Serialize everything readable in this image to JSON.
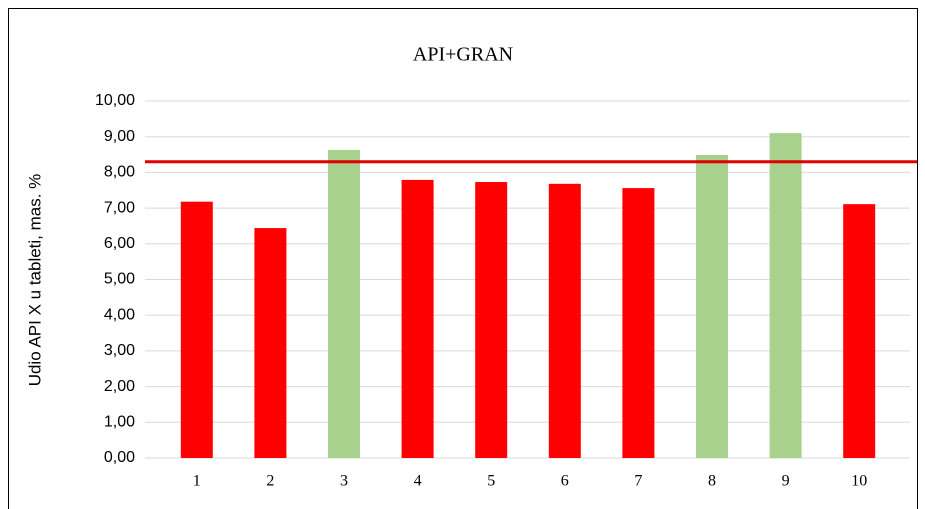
{
  "chart_data": {
    "type": "bar",
    "title": "API+GRAN",
    "y_label": "Udio API X u tableti, mas. %",
    "categories": [
      "1",
      "2",
      "3",
      "4",
      "5",
      "6",
      "7",
      "8",
      "9",
      "10"
    ],
    "values": [
      7.18,
      6.44,
      8.63,
      7.79,
      7.73,
      7.68,
      7.56,
      8.49,
      9.1,
      7.11
    ],
    "colors": [
      "#ff0000",
      "#ff0000",
      "#a9d18e",
      "#ff0000",
      "#ff0000",
      "#ff0000",
      "#ff0000",
      "#a9d18e",
      "#a9d18e",
      "#ff0000"
    ],
    "ylim": [
      0,
      10
    ],
    "yticks": [
      {
        "value": 0,
        "label": "0,00"
      },
      {
        "value": 1,
        "label": "1,00"
      },
      {
        "value": 2,
        "label": "2,00"
      },
      {
        "value": 3,
        "label": "3,00"
      },
      {
        "value": 4,
        "label": "4,00"
      },
      {
        "value": 5,
        "label": "5,00"
      },
      {
        "value": 6,
        "label": "6,00"
      },
      {
        "value": 7,
        "label": "7,00"
      },
      {
        "value": 8,
        "label": "8,00"
      },
      {
        "value": 9,
        "label": "9,00"
      },
      {
        "value": 10,
        "label": "10,00"
      }
    ],
    "grid": true,
    "reference_line": {
      "value": 8.3,
      "color": "#e00000"
    }
  }
}
